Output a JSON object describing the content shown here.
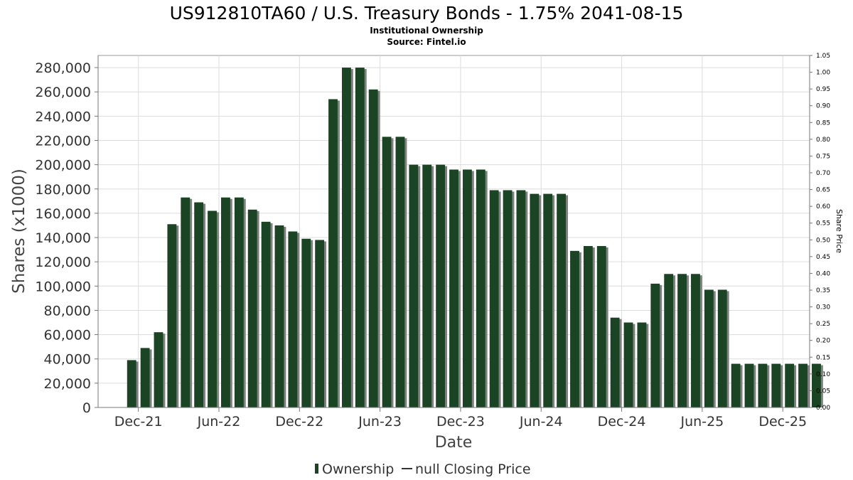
{
  "chart_data": {
    "type": "bar",
    "title": "US912810TA60 / U.S. Treasury Bonds - 1.75% 2041-08-15",
    "subtitle_lines": [
      "Institutional Ownership",
      "Source: Fintel.io"
    ],
    "xlabel": "Date",
    "ylabel": "Shares (x1000)",
    "y2label": "Share Price",
    "ylim": [
      0,
      290000
    ],
    "y_ticks": [
      0,
      20000,
      40000,
      60000,
      80000,
      100000,
      120000,
      140000,
      160000,
      180000,
      200000,
      220000,
      240000,
      260000,
      280000
    ],
    "y_tick_labels": [
      "0",
      "20,000",
      "40,000",
      "60,000",
      "80,000",
      "100,000",
      "120,000",
      "140,000",
      "160,000",
      "180,000",
      "200,000",
      "220,000",
      "240,000",
      "260,000",
      "280,000"
    ],
    "y2lim": [
      0,
      1.05
    ],
    "y2_ticks": [
      0.0,
      0.05,
      0.1,
      0.15,
      0.2,
      0.25,
      0.3,
      0.35,
      0.4,
      0.45,
      0.5,
      0.55,
      0.6,
      0.65,
      0.7,
      0.75,
      0.8,
      0.85,
      0.9,
      0.95,
      1.0,
      1.05
    ],
    "y2_tick_labels": [
      "0.00",
      "0.05",
      "0.10",
      "0.15",
      "0.20",
      "0.25",
      "0.30",
      "0.35",
      "0.40",
      "0.45",
      "0.50",
      "0.55",
      "0.60",
      "0.65",
      "0.70",
      "0.75",
      "0.80",
      "0.85",
      "0.90",
      "0.95",
      "1.00",
      "1.05"
    ],
    "x_tick_labels": [
      "Dec-21",
      "Jun-22",
      "Dec-22",
      "Jun-23",
      "Dec-23",
      "Jun-24",
      "Dec-24",
      "Jun-25",
      "Dec-25"
    ],
    "x_tick_slots": [
      0.5,
      6.5,
      12.5,
      18.5,
      24.5,
      30.5,
      36.5,
      42.5,
      48.5
    ],
    "x_slot_range": [
      -2.5,
      50.5
    ],
    "series": [
      {
        "name": "Ownership",
        "color": "#1a4423",
        "shadow_color": "#808080",
        "values": [
          39000,
          49000,
          62000,
          151000,
          173000,
          169000,
          162000,
          173000,
          173000,
          163000,
          153000,
          150000,
          145000,
          139000,
          138000,
          254000,
          280000,
          280000,
          262000,
          223000,
          223000,
          200000,
          200000,
          200000,
          196000,
          196000,
          196000,
          179000,
          179000,
          179000,
          176000,
          176000,
          176000,
          129000,
          133000,
          133000,
          74000,
          70000,
          70000,
          102000,
          110000,
          110000,
          110000,
          97000,
          97000,
          36000,
          36000,
          36000,
          36000,
          36000,
          36000,
          36000
        ]
      }
    ],
    "legend": {
      "placement": "bottom-center",
      "entries": [
        {
          "label": "Ownership",
          "marker": "bar",
          "color": "#1a4423"
        },
        {
          "label": "null Closing Price",
          "marker": "line",
          "color": "#333333"
        }
      ]
    },
    "grid": true
  }
}
